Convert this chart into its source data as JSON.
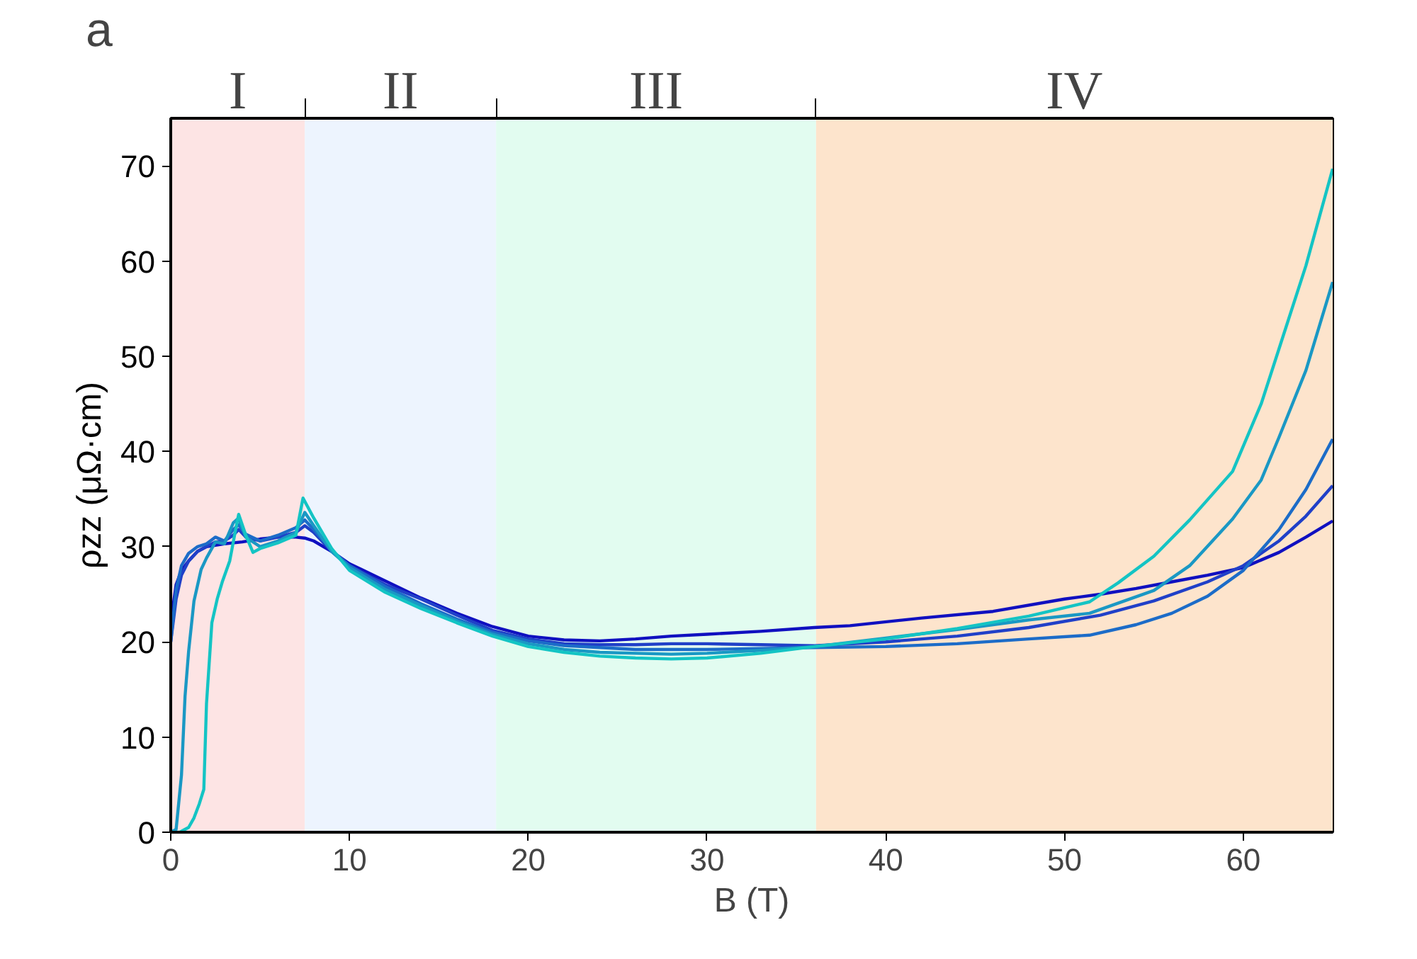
{
  "chart_data": {
    "type": "line",
    "xlabel": "B (T)",
    "ylabel": "ρzz (μΩ·cm)",
    "xlim": [
      0,
      65
    ],
    "ylim": [
      0,
      75
    ],
    "xticks": [
      0,
      10,
      20,
      30,
      40,
      50,
      60
    ],
    "yticks": [
      0,
      10,
      20,
      30,
      40,
      50,
      60,
      70
    ],
    "grid": false,
    "marker": "none",
    "line_style": "solid",
    "annotations": [
      "a"
    ],
    "bands": [
      {
        "axis": "x",
        "from": 0,
        "to": 7.5,
        "label": "I",
        "color": "#fde4e4"
      },
      {
        "axis": "x",
        "from": 7.5,
        "to": 18.2,
        "label": "II",
        "color": "#edf4fe"
      },
      {
        "axis": "x",
        "from": 18.2,
        "to": 36.1,
        "label": "III",
        "color": "#e2fcf0"
      },
      {
        "axis": "x",
        "from": 36.1,
        "to": 65,
        "label": "IV",
        "color": "#fde4cc"
      }
    ],
    "series": [
      {
        "color": "#1010c0",
        "x": [
          0,
          0.3,
          0.6,
          1,
          1.5,
          2,
          3,
          4,
          5,
          6,
          7,
          7.5,
          8,
          9,
          10,
          12,
          14,
          16,
          18,
          20,
          22,
          24,
          26,
          28,
          30,
          33,
          36,
          38,
          42,
          46,
          50,
          52,
          54,
          56,
          58,
          60,
          62,
          63.5,
          65
        ],
        "values": [
          22,
          26,
          27.5,
          28.5,
          29.5,
          30,
          30.3,
          30.5,
          30.8,
          31,
          31,
          30.9,
          30.6,
          29.5,
          28.2,
          26.4,
          24.6,
          23,
          21.6,
          20.6,
          20.2,
          20.1,
          20.3,
          20.6,
          20.8,
          21.1,
          21.5,
          21.7,
          22.5,
          23.2,
          24.5,
          25,
          25.6,
          26.3,
          27,
          27.8,
          29.4,
          31,
          32.7
        ]
      },
      {
        "color": "#2040c8",
        "x": [
          0,
          0.3,
          0.6,
          1,
          1.5,
          2,
          2.5,
          3,
          3.5,
          3.8,
          4.2,
          5,
          6,
          7,
          7.5,
          8,
          9,
          10,
          12,
          14,
          16,
          18,
          20,
          22,
          24,
          26,
          28,
          30,
          33,
          36,
          40,
          44,
          48,
          52,
          55,
          58,
          60,
          62,
          63.5,
          65
        ],
        "values": [
          20,
          24.5,
          27,
          28.5,
          29.5,
          30,
          30.5,
          30.6,
          31.2,
          31.8,
          31,
          30.6,
          31,
          31.5,
          32.2,
          31.5,
          29.5,
          28,
          26,
          24.5,
          22.8,
          21.2,
          20.3,
          19.8,
          19.7,
          19.7,
          19.8,
          19.8,
          19.7,
          19.6,
          20,
          20.6,
          21.5,
          22.8,
          24.3,
          26.3,
          28,
          30.6,
          33.2,
          36.4
        ]
      },
      {
        "color": "#1c6cc8",
        "x": [
          0,
          0.3,
          0.6,
          1,
          1.5,
          2,
          2.5,
          3,
          3.5,
          3.8,
          4.2,
          5,
          6,
          7,
          7.5,
          8,
          9,
          10,
          12,
          14,
          16,
          18,
          20,
          22,
          24,
          26,
          28,
          30,
          33,
          36,
          40,
          44,
          48,
          51.4,
          54,
          56,
          58,
          60,
          62,
          63.5,
          65
        ],
        "values": [
          20,
          25.5,
          28,
          29.3,
          30,
          30.3,
          31,
          30.6,
          31.8,
          32.3,
          31.3,
          30.6,
          31.2,
          32,
          32.8,
          31.8,
          29.6,
          28,
          25.8,
          24,
          22.4,
          21,
          20.1,
          19.6,
          19.4,
          19.2,
          19.2,
          19.2,
          19.3,
          19.4,
          19.5,
          19.8,
          20.3,
          20.7,
          21.8,
          23,
          24.8,
          27.5,
          31.8,
          36,
          41.3
        ]
      },
      {
        "color": "#1a98c4",
        "x": [
          0,
          0.3,
          0.6,
          0.8,
          1,
          1.3,
          1.7,
          2,
          2.5,
          3,
          3.5,
          3.8,
          4.2,
          5,
          6,
          7,
          7.5,
          8,
          9,
          10,
          12,
          14,
          16,
          18,
          20,
          22,
          24,
          26,
          28,
          30,
          33,
          36,
          40,
          44,
          48,
          51.4,
          55,
          57,
          59.4,
          61,
          62,
          63.5,
          65
        ],
        "values": [
          0,
          0.3,
          6,
          14.3,
          19,
          24.3,
          27.6,
          28.8,
          30.5,
          30.3,
          32.5,
          33,
          31,
          30,
          30.6,
          31.5,
          33.6,
          32.2,
          29.5,
          27.8,
          25.5,
          23.8,
          22.2,
          20.8,
          19.8,
          19.2,
          18.9,
          18.8,
          18.7,
          18.8,
          19.1,
          19.5,
          20.4,
          21.3,
          22.3,
          23,
          25.4,
          28,
          32.9,
          37,
          41.5,
          48.5,
          57.8
        ]
      },
      {
        "color": "#14c4c4",
        "x": [
          0,
          0.5,
          1,
          1.3,
          1.6,
          1.85,
          2,
          2.3,
          2.6,
          2.9,
          3.3,
          3.6,
          3.8,
          4.2,
          4.6,
          5,
          6,
          7,
          7.4,
          8,
          9,
          10,
          12,
          14,
          16,
          18,
          20,
          22,
          24,
          26,
          28,
          30,
          33,
          36,
          40,
          44,
          48,
          51.4,
          53,
          55,
          57,
          59.4,
          61,
          62,
          63.5,
          65
        ],
        "values": [
          0,
          0,
          0.5,
          1.5,
          3,
          4.5,
          13.5,
          22,
          24.5,
          26.4,
          28.5,
          31.5,
          33.4,
          31.2,
          29.4,
          29.8,
          30.4,
          31.2,
          35.1,
          33,
          29.8,
          27.5,
          25.2,
          23.5,
          22,
          20.6,
          19.5,
          18.9,
          18.5,
          18.3,
          18.2,
          18.3,
          18.8,
          19.5,
          20.3,
          21.4,
          22.7,
          24.2,
          26.2,
          29,
          32.8,
          37.9,
          45,
          50.8,
          59.5,
          69.7
        ]
      }
    ]
  }
}
